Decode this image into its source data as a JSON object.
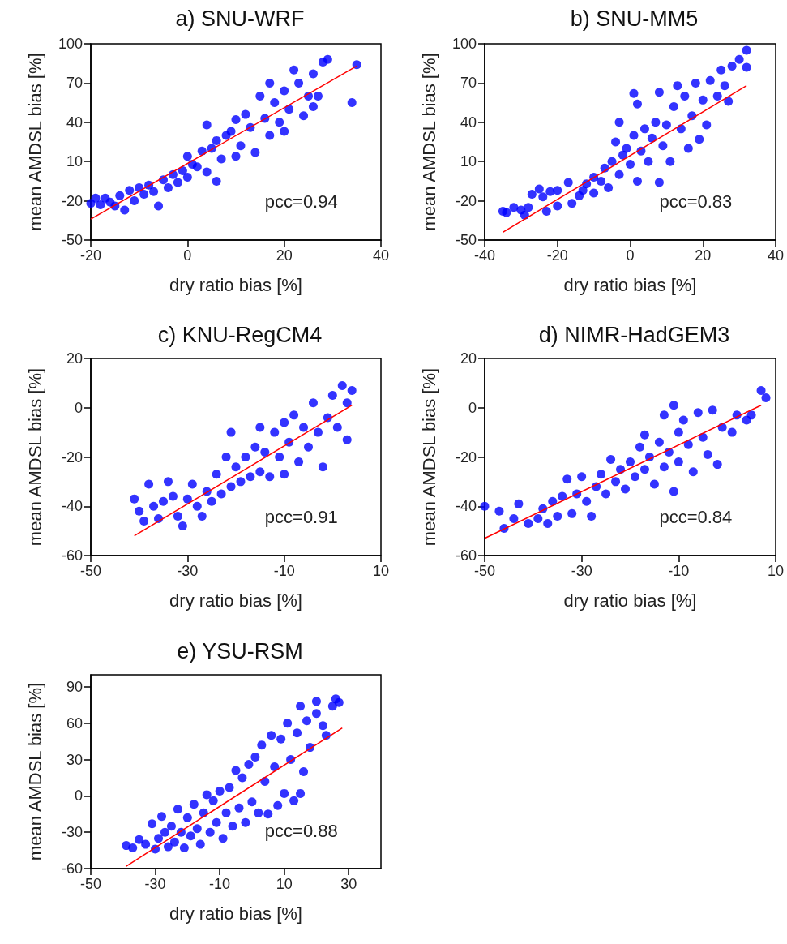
{
  "chart_data": [
    {
      "type": "scatter",
      "title": "a) SNU-WRF",
      "xlabel": "dry ratio bias [%]",
      "ylabel": "mean AMDSL bias [%]",
      "annotations": [
        "pcc=0.94"
      ],
      "xlim": [
        -20,
        40
      ],
      "xticks": [
        -20,
        0,
        20,
        40
      ],
      "ylim": [
        -50,
        100
      ],
      "yticks": [
        -50,
        -20,
        10,
        40,
        70,
        100
      ],
      "grid": false,
      "marker": "circle",
      "series": [
        {
          "color": "#0000ff",
          "x": [
            -20,
            -19,
            -18,
            -17,
            -16,
            -15,
            -14,
            -13,
            -12,
            -11,
            -10,
            -9,
            -8,
            -7,
            -6,
            -5,
            -4,
            -3,
            -2,
            -1,
            0,
            0,
            1,
            2,
            3,
            4,
            4,
            5,
            6,
            6,
            7,
            8,
            9,
            10,
            10,
            11,
            12,
            13,
            14,
            15,
            16,
            17,
            17,
            18,
            19,
            20,
            20,
            21,
            22,
            23,
            24,
            25,
            26,
            26,
            27,
            28,
            29,
            34,
            35
          ],
          "values": [
            -22,
            -18,
            -23,
            -18,
            -21,
            -24,
            -16,
            -27,
            -12,
            -20,
            -10,
            -15,
            -8,
            -13,
            -24,
            -4,
            -10,
            0,
            -6,
            3,
            14,
            -2,
            8,
            6,
            18,
            38,
            2,
            20,
            26,
            -5,
            12,
            30,
            33,
            14,
            42,
            22,
            46,
            36,
            17,
            60,
            43,
            70,
            30,
            55,
            40,
            64,
            33,
            50,
            80,
            70,
            45,
            60,
            52,
            77,
            60,
            86,
            88,
            55,
            84
          ]
        },
        {
          "type": "line",
          "color": "#ff0000",
          "marker": "none",
          "x": [
            -20,
            35
          ],
          "values": [
            -34,
            83
          ]
        }
      ]
    },
    {
      "type": "scatter",
      "title": "b) SNU-MM5",
      "xlabel": "dry ratio bias [%]",
      "ylabel": "mean AMDSL bias [%]",
      "annotations": [
        "pcc=0.83"
      ],
      "xlim": [
        -40,
        40
      ],
      "xticks": [
        -40,
        -20,
        0,
        20,
        40
      ],
      "ylim": [
        -50,
        100
      ],
      "yticks": [
        -50,
        -20,
        10,
        40,
        70,
        100
      ],
      "grid": false,
      "marker": "circle",
      "series": [
        {
          "color": "#0000ff",
          "x": [
            -35,
            -34,
            -32,
            -30,
            -29,
            -28,
            -27,
            -25,
            -24,
            -23,
            -22,
            -20,
            -20,
            -17,
            -16,
            -14,
            -13,
            -12,
            -10,
            -10,
            -8,
            -7,
            -6,
            -5,
            -4,
            -3,
            -3,
            -2,
            -1,
            0,
            1,
            1,
            2,
            2,
            3,
            4,
            5,
            6,
            7,
            8,
            8,
            9,
            10,
            11,
            12,
            13,
            14,
            15,
            16,
            17,
            18,
            19,
            20,
            21,
            22,
            24,
            25,
            26,
            27,
            28,
            30,
            32,
            32
          ],
          "values": [
            -28,
            -29,
            -25,
            -27,
            -31,
            -25,
            -15,
            -11,
            -17,
            -28,
            -13,
            -24,
            -12,
            -6,
            -22,
            -16,
            -12,
            -7,
            -14,
            -2,
            -5,
            5,
            -10,
            10,
            25,
            0,
            40,
            15,
            20,
            8,
            62,
            30,
            -5,
            54,
            18,
            35,
            10,
            28,
            40,
            63,
            -6,
            22,
            38,
            10,
            52,
            68,
            35,
            60,
            20,
            45,
            70,
            27,
            57,
            38,
            72,
            60,
            80,
            68,
            56,
            83,
            88,
            95,
            82
          ]
        },
        {
          "type": "line",
          "color": "#ff0000",
          "marker": "none",
          "x": [
            -35,
            32
          ],
          "values": [
            -44,
            68
          ]
        }
      ]
    },
    {
      "type": "scatter",
      "title": "c) KNU-RegCM4",
      "xlabel": "dry ratio bias [%]",
      "ylabel": "mean AMDSL bias [%]",
      "annotations": [
        "pcc=0.91"
      ],
      "xlim": [
        -50,
        10
      ],
      "xticks": [
        -50,
        -30,
        -10,
        10
      ],
      "ylim": [
        -60,
        20
      ],
      "yticks": [
        -60,
        -40,
        -20,
        0,
        20
      ],
      "grid": false,
      "marker": "circle",
      "series": [
        {
          "color": "#0000ff",
          "x": [
            -41,
            -40,
            -39,
            -38,
            -37,
            -36,
            -35,
            -34,
            -33,
            -32,
            -31,
            -30,
            -29,
            -28,
            -27,
            -26,
            -25,
            -24,
            -23,
            -22,
            -21,
            -21,
            -20,
            -19,
            -18,
            -17,
            -16,
            -15,
            -15,
            -14,
            -13,
            -12,
            -11,
            -10,
            -10,
            -9,
            -8,
            -7,
            -6,
            -5,
            -4,
            -3,
            -2,
            -1,
            0,
            1,
            2,
            3,
            3,
            4
          ],
          "values": [
            -37,
            -42,
            -46,
            -31,
            -40,
            -45,
            -38,
            -30,
            -36,
            -44,
            -48,
            -37,
            -31,
            -40,
            -44,
            -34,
            -38,
            -27,
            -35,
            -20,
            -10,
            -32,
            -24,
            -30,
            -20,
            -28,
            -16,
            -8,
            -26,
            -18,
            -28,
            -10,
            -20,
            -6,
            -27,
            -14,
            -3,
            -22,
            -8,
            -16,
            2,
            -10,
            -24,
            -4,
            5,
            -8,
            9,
            -13,
            2,
            7
          ]
        },
        {
          "type": "line",
          "color": "#ff0000",
          "marker": "none",
          "x": [
            -41,
            4
          ],
          "values": [
            -52,
            1
          ]
        }
      ]
    },
    {
      "type": "scatter",
      "title": "d) NIMR-HadGEM3",
      "xlabel": "dry ratio bias [%]",
      "ylabel": "mean AMDSL bias [%]",
      "annotations": [
        "pcc=0.84"
      ],
      "xlim": [
        -50,
        10
      ],
      "xticks": [
        -50,
        -30,
        -10,
        10
      ],
      "ylim": [
        -60,
        20
      ],
      "yticks": [
        -60,
        -40,
        -20,
        0,
        20
      ],
      "grid": false,
      "marker": "circle",
      "series": [
        {
          "color": "#0000ff",
          "x": [
            -50,
            -47,
            -46,
            -44,
            -43,
            -41,
            -39,
            -38,
            -37,
            -36,
            -35,
            -34,
            -33,
            -32,
            -31,
            -30,
            -29,
            -28,
            -27,
            -26,
            -25,
            -24,
            -23,
            -22,
            -21,
            -20,
            -19,
            -18,
            -17,
            -17,
            -16,
            -15,
            -14,
            -13,
            -13,
            -12,
            -11,
            -11,
            -10,
            -10,
            -9,
            -8,
            -7,
            -6,
            -5,
            -4,
            -3,
            -2,
            -1,
            1,
            2,
            4,
            5,
            7,
            8
          ],
          "values": [
            -40,
            -42,
            -49,
            -45,
            -39,
            -47,
            -45,
            -41,
            -47,
            -38,
            -44,
            -36,
            -29,
            -43,
            -35,
            -28,
            -38,
            -44,
            -32,
            -27,
            -35,
            -21,
            -30,
            -25,
            -33,
            -22,
            -28,
            -16,
            -11,
            -25,
            -20,
            -31,
            -14,
            -3,
            -24,
            -18,
            1,
            -34,
            -10,
            -22,
            -5,
            -15,
            -26,
            -2,
            -12,
            -19,
            -1,
            -23,
            -8,
            -10,
            -3,
            -5,
            -3,
            7,
            4
          ]
        },
        {
          "type": "line",
          "color": "#ff0000",
          "marker": "none",
          "x": [
            -50,
            7
          ],
          "values": [
            -53,
            1
          ]
        }
      ]
    },
    {
      "type": "scatter",
      "title": "e) YSU-RSM",
      "xlabel": "dry ratio bias [%]",
      "ylabel": "mean AMDSL bias [%]",
      "annotations": [
        "pcc=0.88"
      ],
      "xlim": [
        -50,
        40
      ],
      "xticks": [
        -50,
        -30,
        -10,
        10,
        30
      ],
      "ylim": [
        -60,
        100
      ],
      "yticks": [
        -60,
        -30,
        0,
        30,
        60,
        90
      ],
      "grid": false,
      "marker": "circle",
      "series": [
        {
          "color": "#0000ff",
          "x": [
            -39,
            -37,
            -35,
            -33,
            -31,
            -30,
            -29,
            -28,
            -27,
            -26,
            -25,
            -24,
            -23,
            -22,
            -21,
            -20,
            -19,
            -18,
            -17,
            -16,
            -15,
            -14,
            -13,
            -12,
            -11,
            -10,
            -9,
            -8,
            -7,
            -6,
            -5,
            -4,
            -3,
            -2,
            -1,
            0,
            1,
            2,
            3,
            4,
            5,
            6,
            7,
            8,
            9,
            10,
            11,
            12,
            13,
            14,
            15,
            15,
            16,
            17,
            18,
            20,
            20,
            22,
            23,
            25,
            26,
            27
          ],
          "values": [
            -41,
            -43,
            -36,
            -40,
            -23,
            -44,
            -35,
            -17,
            -30,
            -42,
            -25,
            -38,
            -11,
            -30,
            -43,
            -18,
            -33,
            -7,
            -27,
            -40,
            -14,
            1,
            -30,
            -4,
            -22,
            4,
            -35,
            -14,
            7,
            -25,
            21,
            -10,
            15,
            -22,
            26,
            -5,
            32,
            -14,
            42,
            12,
            -15,
            50,
            24,
            -8,
            47,
            2,
            60,
            30,
            -4,
            52,
            2,
            74,
            20,
            62,
            40,
            78,
            68,
            58,
            50,
            74,
            80,
            77
          ]
        },
        {
          "type": "line",
          "color": "#ff0000",
          "marker": "none",
          "x": [
            -39,
            28
          ],
          "values": [
            -58,
            56
          ]
        }
      ]
    }
  ]
}
